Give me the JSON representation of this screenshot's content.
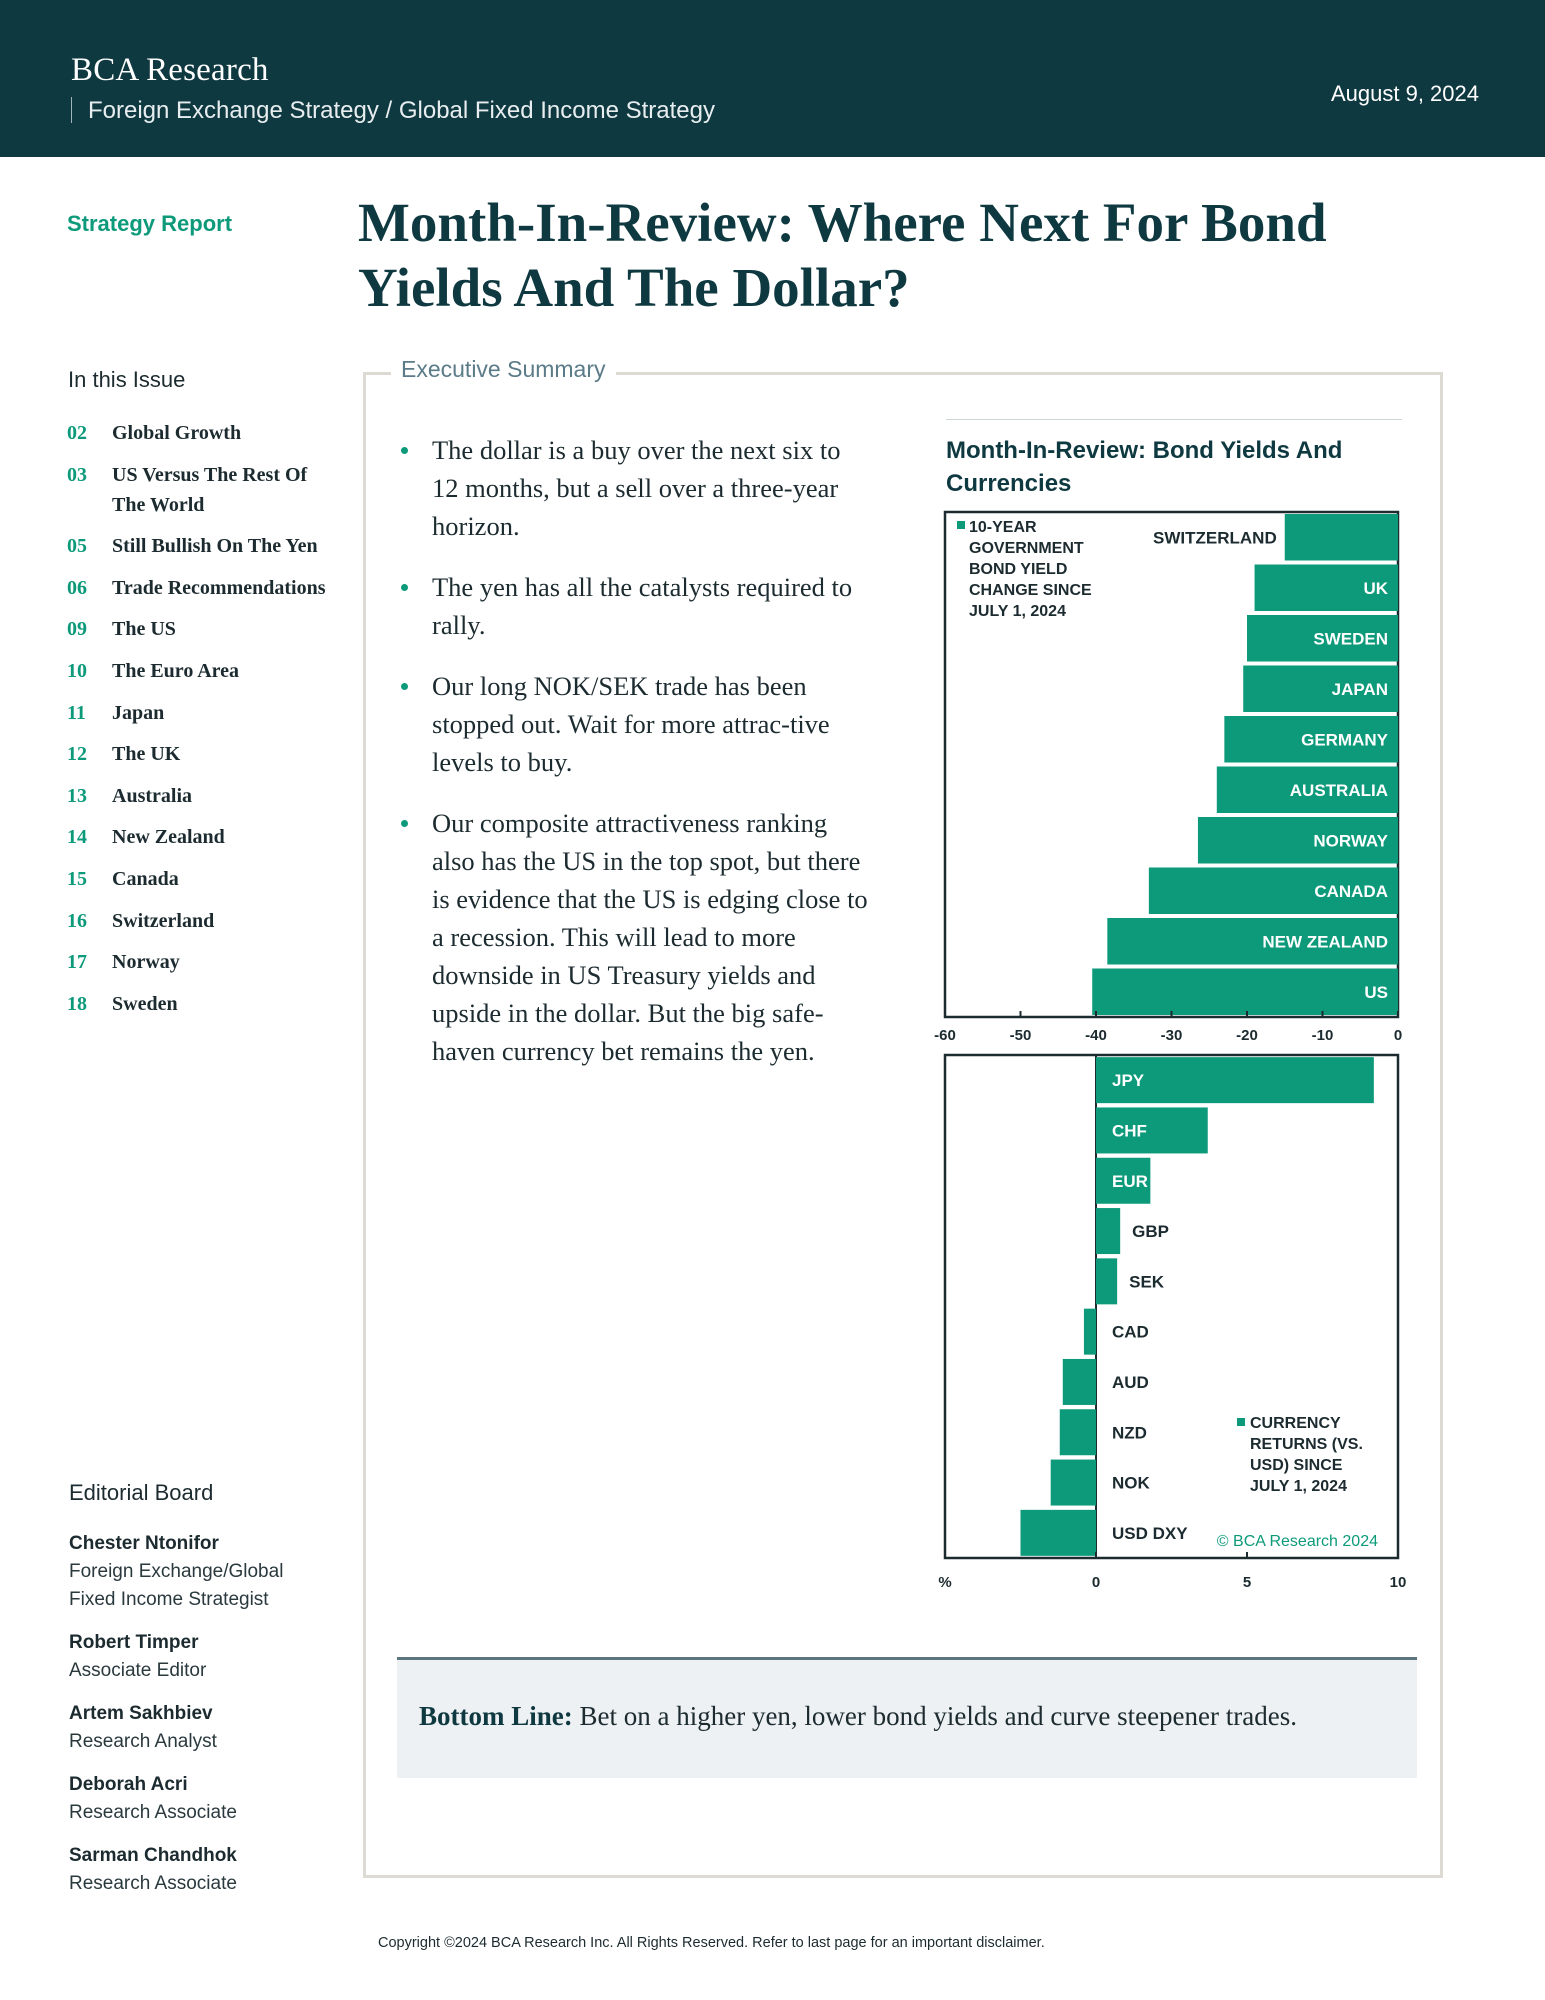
{
  "header": {
    "brand": "BCA Research",
    "subtitle": "Foreign Exchange Strategy / Global Fixed Income Strategy",
    "date": "August 9, 2024"
  },
  "report_type": "Strategy Report",
  "title": "Month-In-Review: Where Next For Bond Yields And The Dollar?",
  "in_this_issue": {
    "heading": "In this Issue",
    "items": [
      {
        "page": "02",
        "label": "Global Growth"
      },
      {
        "page": "03",
        "label": "US Versus The Rest Of The World"
      },
      {
        "page": "05",
        "label": "Still Bullish On The Yen"
      },
      {
        "page": "06",
        "label": "Trade Recommendations"
      },
      {
        "page": "09",
        "label": "The US"
      },
      {
        "page": "10",
        "label": "The Euro Area"
      },
      {
        "page": "11",
        "label": "Japan"
      },
      {
        "page": "12",
        "label": "The UK"
      },
      {
        "page": "13",
        "label": "Australia"
      },
      {
        "page": "14",
        "label": "New Zealand"
      },
      {
        "page": "15",
        "label": "Canada"
      },
      {
        "page": "16",
        "label": "Switzerland"
      },
      {
        "page": "17",
        "label": "Norway"
      },
      {
        "page": "18",
        "label": "Sweden"
      }
    ]
  },
  "editorial_board": {
    "heading": "Editorial Board",
    "members": [
      {
        "name": "Chester Ntonifor",
        "role": "Foreign Exchange/Global Fixed Income Strategist"
      },
      {
        "name": "Robert Timper",
        "role": "Associate Editor"
      },
      {
        "name": "Artem Sakhbiev",
        "role": "Research Analyst"
      },
      {
        "name": "Deborah Acri",
        "role": "Research Associate"
      },
      {
        "name": "Sarman Chandhok",
        "role": "Research Associate"
      }
    ]
  },
  "executive_summary": {
    "heading": "Executive Summary",
    "bullets": [
      "The dollar is a buy over the next six to 12 months, but a sell over a three-year horizon.",
      "The yen has all the catalysts required to rally.",
      "Our long NOK/SEK trade has been stopped out. Wait for more attrac-tive levels to buy.",
      "Our composite attractiveness ranking also has the US in the top spot, but there is evidence that the US is edging close to a recession. This will lead to more downside in US Treasury yields and upside in the dollar. But the big safe-haven currency bet remains the yen."
    ]
  },
  "bottom_line": {
    "label": "Bottom Line:",
    "text": "Bet on a higher yen, lower bond yields and curve steepener trades."
  },
  "chart_title": "Month-In-Review: Bond Yields And Currencies",
  "chart_data": [
    {
      "type": "bar",
      "orientation": "horizontal",
      "legend": "10-YEAR GOVERNMENT BOND YIELD CHANGE SINCE JULY 1, 2024",
      "legend_lines": [
        "10-YEAR",
        "GOVERNMENT",
        "BOND YIELD",
        "CHANGE SINCE",
        "JULY 1, 2024"
      ],
      "categories": [
        "SWITZERLAND",
        "UK",
        "SWEDEN",
        "JAPAN",
        "GERMANY",
        "AUSTRALIA",
        "NORWAY",
        "CANADA",
        "NEW ZEALAND",
        "US"
      ],
      "values": [
        -15,
        -19,
        -20,
        -20.5,
        -23,
        -24,
        -26.5,
        -33,
        -38.5,
        -40.5
      ],
      "xlim": [
        -60,
        0
      ],
      "xticks": [
        "-60",
        "-50",
        "-40",
        "-30",
        "-20",
        "-10",
        "0"
      ],
      "color": "#0d9a7a"
    },
    {
      "type": "bar",
      "orientation": "horizontal",
      "legend": "CURRENCY RETURNS (VS. USD) SINCE JULY 1, 2024",
      "legend_lines": [
        "CURRENCY",
        "RETURNS (VS.",
        "USD) SINCE",
        "JULY 1, 2024"
      ],
      "categories": [
        "JPY",
        "CHF",
        "EUR",
        "GBP",
        "SEK",
        "CAD",
        "AUD",
        "NZD",
        "NOK",
        "USD DXY"
      ],
      "values": [
        9.2,
        3.7,
        1.8,
        0.8,
        0.7,
        -0.4,
        -1.1,
        -1.2,
        -1.5,
        -2.5
      ],
      "xlim": [
        -5,
        10
      ],
      "xticks": [
        "0",
        "5",
        "10"
      ],
      "unit": "%",
      "source": "© BCA Research 2024",
      "color": "#0d9a7a"
    }
  ],
  "copyright": "Copyright ©2024 BCA Research Inc. All Rights Reserved. Refer to last page for an important disclaimer."
}
